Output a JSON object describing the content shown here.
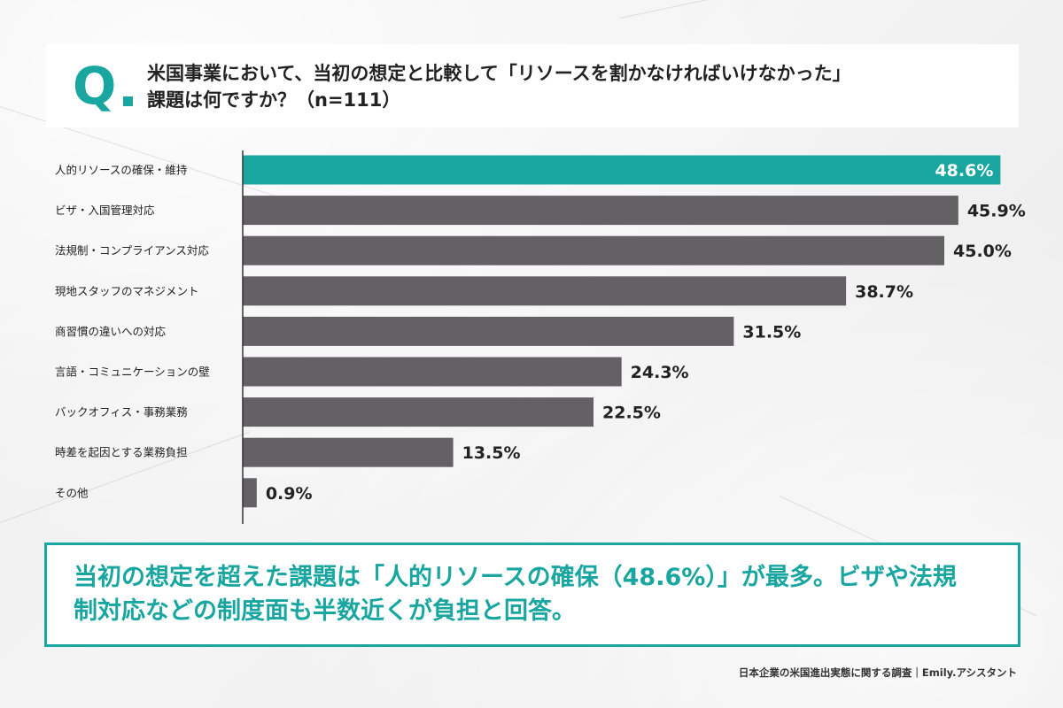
{
  "question": {
    "mark": "Q",
    "line1": "米国事業において、当初の想定と比較して「リソースを割かなければいけなかった」",
    "line2": "課題は何ですか？（n=111）"
  },
  "chart_data": {
    "type": "bar",
    "orientation": "horizontal",
    "categories": [
      "人的リソースの確保・維持",
      "ビザ・入国管理対応",
      "法規制・コンプライアンス対応",
      "現地スタッフのマネジメント",
      "商習慣の違いへの対応",
      "言語・コミュニケーションの壁",
      "バックオフィス・事務業務",
      "時差を起因とする業務負担",
      "その他"
    ],
    "values": [
      48.6,
      45.9,
      45.0,
      38.7,
      31.5,
      24.3,
      22.5,
      13.5,
      0.9
    ],
    "value_labels": [
      "48.6%",
      "45.9%",
      "45.0%",
      "38.7%",
      "31.5%",
      "24.3%",
      "22.5%",
      "13.5%",
      "0.9%"
    ],
    "xlim": [
      0,
      50
    ],
    "highlight_index": 0,
    "colors": {
      "highlight": "#1aa6a0",
      "bar": "#636164",
      "axis": "#333333",
      "highlight_label": "#ffffff",
      "label": "#222222"
    },
    "grid": false,
    "legend": "none"
  },
  "summary": {
    "line1": "当初の想定を超えた課題は「人的リソースの確保（48.6%）」が最多。ビザや法規",
    "line2": "制対応などの制度面も半数近くが負担と回答。"
  },
  "source": "日本企業の米国進出実態に関する調査｜Emily.アシスタント"
}
